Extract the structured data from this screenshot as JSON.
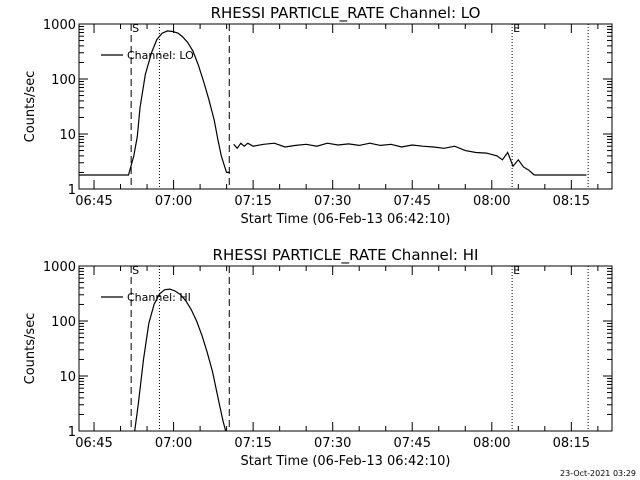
{
  "chart_data": [
    {
      "type": "line",
      "title": "RHESSI PARTICLE_RATE Channel: LO",
      "xlabel": "Start Time (06-Feb-13 06:42:10)",
      "ylabel": "Counts/sec",
      "yscale": "log",
      "ylim": [
        1,
        1000
      ],
      "xlim": [
        "06:42:10",
        "08:22:40"
      ],
      "x_ticks": [
        "06:45",
        "07:00",
        "07:15",
        "07:30",
        "07:45",
        "08:00",
        "08:15"
      ],
      "y_ticks": [
        "1",
        "10",
        "100",
        "1000"
      ],
      "legend": {
        "position": "top-left",
        "entries": [
          "Channel: LO"
        ]
      },
      "markers": {
        "start_label": "S",
        "end_label": "E"
      },
      "vlines": [
        {
          "time": "06:52:00",
          "style": "dashed"
        },
        {
          "time": "06:57:20",
          "style": "dotted"
        },
        {
          "time": "07:10:30",
          "style": "dashed"
        },
        {
          "time": "08:03:50",
          "style": "dotted"
        },
        {
          "time": "08:18:10",
          "style": "dotted"
        }
      ],
      "series": [
        {
          "name": "Channel: LO",
          "segments": [
            {
              "x": [
                "06:42:10",
                "06:44:00",
                "06:49:00",
                "06:51:30",
                "06:52:30",
                "06:53:10",
                "06:53:40",
                "06:54:40",
                "06:55:50",
                "06:56:50",
                "06:57:50",
                "06:58:50",
                "06:59:50",
                "07:00:50",
                "07:01:40",
                "07:02:40",
                "07:03:40",
                "07:04:40",
                "07:05:40",
                "07:06:40",
                "07:07:40",
                "07:08:20",
                "07:09:00",
                "07:09:40",
                "07:10:00",
                "07:10:40"
              ],
              "y": [
                1.8,
                1.8,
                1.8,
                1.8,
                4,
                9,
                30,
                120,
                300,
                520,
                680,
                750,
                730,
                680,
                590,
                460,
                320,
                180,
                90,
                42,
                18,
                8,
                4,
                2.5,
                2,
                2
              ]
            },
            {
              "x": [
                "07:11:20",
                "07:12:00",
                "07:12:40",
                "07:13:20",
                "07:14:00",
                "07:15:00",
                "07:17:00",
                "07:19:00",
                "07:21:00",
                "07:23:00",
                "07:25:00",
                "07:27:00",
                "07:29:00",
                "07:31:00",
                "07:33:00",
                "07:35:00",
                "07:37:00",
                "07:39:00",
                "07:41:00",
                "07:43:00",
                "07:45:00",
                "07:47:00",
                "07:49:00",
                "07:51:00",
                "07:53:00",
                "07:55:00",
                "07:57:00",
                "07:59:00",
                "08:01:00",
                "08:02:00",
                "08:03:00",
                "08:04:00",
                "08:05:00",
                "08:06:00",
                "08:07:00",
                "08:08:00"
              ],
              "y": [
                6.5,
                5.5,
                6.8,
                6,
                6.8,
                6,
                6.5,
                6.8,
                5.8,
                6.2,
                6.5,
                6,
                6.8,
                6.3,
                6.6,
                6.2,
                6.8,
                6.2,
                6.5,
                5.8,
                6.3,
                6,
                5.8,
                5.5,
                6,
                5,
                4.6,
                4.5,
                4,
                3.4,
                4.6,
                2.6,
                3.4,
                2.5,
                2.2,
                1.8
              ]
            },
            {
              "x": [
                "08:08:00",
                "08:10:00",
                "08:12:00",
                "08:14:00",
                "08:16:00",
                "08:17:50"
              ],
              "y": [
                1.8,
                1.8,
                1.8,
                1.8,
                1.8,
                1.8
              ]
            }
          ]
        }
      ]
    },
    {
      "type": "line",
      "title": "RHESSI PARTICLE_RATE Channel: HI",
      "xlabel": "Start Time (06-Feb-13 06:42:10)",
      "ylabel": "Counts/sec",
      "yscale": "log",
      "ylim": [
        1,
        1000
      ],
      "xlim": [
        "06:42:10",
        "08:22:40"
      ],
      "x_ticks": [
        "06:45",
        "07:00",
        "07:15",
        "07:30",
        "07:45",
        "08:00",
        "08:15"
      ],
      "y_ticks": [
        "1",
        "10",
        "100",
        "1000"
      ],
      "legend": {
        "position": "top-left",
        "entries": [
          "Channel: HI"
        ]
      },
      "markers": {
        "start_label": "S",
        "end_label": "E"
      },
      "vlines": [
        {
          "time": "06:52:00",
          "style": "dashed"
        },
        {
          "time": "06:57:20",
          "style": "dotted"
        },
        {
          "time": "07:10:30",
          "style": "dashed"
        },
        {
          "time": "08:03:50",
          "style": "dotted"
        },
        {
          "time": "08:18:10",
          "style": "dotted"
        }
      ],
      "series": [
        {
          "name": "Channel: HI",
          "segments": [
            {
              "x": [
                "06:52:40",
                "06:53:20",
                "06:54:20",
                "06:55:20",
                "06:56:20",
                "06:57:20",
                "06:58:20",
                "06:59:20",
                "07:00:20",
                "07:01:20",
                "07:02:20",
                "07:03:20",
                "07:04:20",
                "07:05:20",
                "07:06:20",
                "07:07:20",
                "07:08:00",
                "07:08:40",
                "07:09:20",
                "07:09:50"
              ],
              "y": [
                1,
                3,
                20,
                90,
                200,
                310,
                370,
                380,
                350,
                300,
                230,
                160,
                100,
                55,
                27,
                12,
                6,
                3,
                1.5,
                1
              ]
            }
          ]
        }
      ]
    }
  ],
  "footer": {
    "timestamp": "23-Oct-2021 03:29"
  }
}
